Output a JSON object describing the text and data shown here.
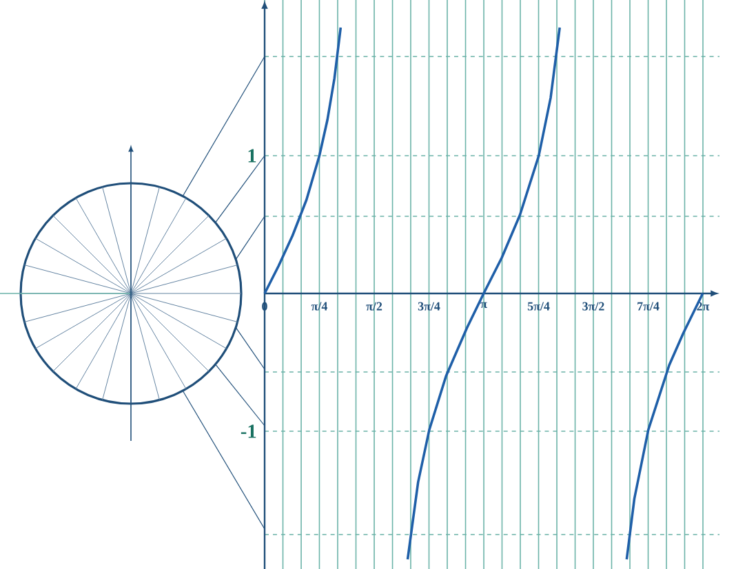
{
  "chart_data": {
    "type": "line",
    "color": "#1f5fa8",
    "x": [
      0,
      0.2,
      0.4,
      0.6,
      0.785,
      0.9,
      1.0,
      1.09,
      1.3,
      2.05,
      2.2,
      2.36,
      2.6,
      2.9,
      3.14,
      3.4,
      3.66,
      3.93,
      4.1,
      4.23,
      4.7,
      5.19,
      5.3,
      5.5,
      5.8,
      6.0,
      6.28
    ],
    "values": [
      0,
      0.2,
      0.42,
      0.68,
      1,
      1.26,
      1.56,
      1.93,
      null,
      -1.93,
      -1.37,
      -0.99,
      -0.6,
      -0.25,
      0,
      0.26,
      0.57,
      1.0,
      1.42,
      1.93,
      null,
      -1.93,
      -1.49,
      -0.99,
      -0.52,
      -0.29,
      0
    ],
    "xlim": [
      0,
      6.52
    ],
    "ylim": [
      -2,
      2.13
    ],
    "xticks": [
      {
        "value": 0,
        "label": "0"
      },
      {
        "value": 0.262,
        "label": null
      },
      {
        "value": 0.524,
        "label": null
      },
      {
        "value": 0.785,
        "label": "π/4"
      },
      {
        "value": 1.047,
        "label": null
      },
      {
        "value": 1.309,
        "label": null
      },
      {
        "value": 1.571,
        "label": "π/2"
      },
      {
        "value": 1.833,
        "label": null
      },
      {
        "value": 2.094,
        "label": null
      },
      {
        "value": 2.356,
        "label": "3π/4"
      },
      {
        "value": 2.618,
        "label": null
      },
      {
        "value": 2.88,
        "label": null
      },
      {
        "value": 3.142,
        "label": "π"
      },
      {
        "value": 3.403,
        "label": null
      },
      {
        "value": 3.665,
        "label": null
      },
      {
        "value": 3.927,
        "label": "5π/4"
      },
      {
        "value": 4.189,
        "label": null
      },
      {
        "value": 4.451,
        "label": null
      },
      {
        "value": 4.712,
        "label": "3π/2"
      },
      {
        "value": 4.974,
        "label": null
      },
      {
        "value": 5.236,
        "label": null
      },
      {
        "value": 5.498,
        "label": "7π/4"
      },
      {
        "value": 5.76,
        "label": null
      },
      {
        "value": 6.021,
        "label": null
      },
      {
        "value": 6.283,
        "label": "2π"
      }
    ],
    "yticks": [
      {
        "value": -1.75,
        "label": null
      },
      -1,
      {
        "value": -0.57,
        "label": null
      },
      {
        "value": 0.56,
        "label": null
      },
      1,
      {
        "value": 1.72,
        "label": null
      }
    ],
    "grid": true
  }
}
